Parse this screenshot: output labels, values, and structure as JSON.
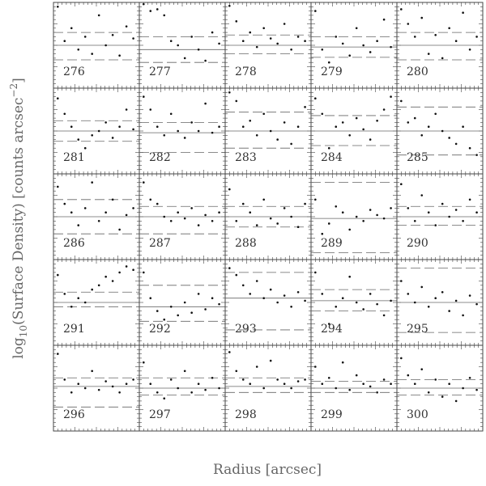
{
  "chart_data": {
    "type": "scatter",
    "ylabel": {
      "pre": "log",
      "sub": "10",
      "mid": "(Surface Density) [counts arcsec",
      "sup": "−2",
      "post": "]"
    },
    "xlabel": "Radius [arcsec]",
    "xlim": [
      0,
      1
    ],
    "ylim": [
      0,
      1
    ],
    "x": [
      0.05,
      0.13,
      0.21,
      0.29,
      0.37,
      0.45,
      0.53,
      0.61,
      0.69,
      0.77,
      0.85,
      0.93
    ],
    "panels": [
      {
        "label": "276",
        "lines": [
          0.5,
          0.65,
          0.33
        ],
        "values": [
          0.95,
          0.55,
          0.7,
          0.45,
          0.6,
          0.4,
          0.85,
          0.5,
          0.62,
          0.38,
          0.72,
          0.58
        ]
      },
      {
        "label": "277",
        "lines": [
          0.45,
          0.6,
          0.3
        ],
        "values": [
          0.98,
          0.9,
          0.92,
          0.85,
          0.55,
          0.5,
          0.35,
          0.6,
          0.45,
          0.32,
          0.65,
          0.52
        ]
      },
      {
        "label": "278",
        "lines": [
          0.5,
          0.62,
          0.4
        ],
        "values": [
          0.96,
          0.78,
          0.55,
          0.65,
          0.48,
          0.7,
          0.58,
          0.52,
          0.75,
          0.45,
          0.6,
          0.55
        ]
      },
      {
        "label": "279",
        "lines": [
          0.48,
          0.6,
          0.36
        ],
        "values": [
          0.9,
          0.45,
          0.3,
          0.6,
          0.52,
          0.38,
          0.7,
          0.5,
          0.42,
          0.55,
          0.8,
          0.48
        ]
      },
      {
        "label": "280",
        "lines": [
          0.5,
          0.65,
          0.33
        ],
        "values": [
          0.92,
          0.75,
          0.6,
          0.82,
          0.4,
          0.62,
          0.35,
          0.7,
          0.55,
          0.88,
          0.45,
          0.6
        ]
      },
      {
        "label": "281",
        "lines": [
          0.5,
          0.62,
          0.38
        ],
        "values": [
          0.88,
          0.7,
          0.55,
          0.4,
          0.3,
          0.45,
          0.5,
          0.6,
          0.42,
          0.55,
          0.75,
          0.52
        ]
      },
      {
        "label": "282",
        "lines": [
          0.48,
          0.6,
          0.25
        ],
        "values": [
          0.9,
          0.75,
          0.55,
          0.45,
          0.7,
          0.5,
          0.42,
          0.6,
          0.5,
          0.82,
          0.48,
          0.55
        ]
      },
      {
        "label": "283",
        "lines": [
          0.5,
          0.72,
          0.3
        ],
        "values": [
          0.95,
          0.85,
          0.55,
          0.62,
          0.45,
          0.7,
          0.5,
          0.4,
          0.6,
          0.35,
          0.55,
          0.78
        ]
      },
      {
        "label": "284",
        "lines": [
          0.5,
          0.68,
          0.33
        ],
        "values": [
          0.88,
          0.7,
          0.3,
          0.55,
          0.6,
          0.45,
          0.65,
          0.52,
          0.4,
          0.62,
          0.75,
          0.9
        ]
      },
      {
        "label": "285",
        "lines": [
          0.5,
          0.78,
          0.22
        ],
        "values": [
          0.85,
          0.6,
          0.65,
          0.45,
          0.55,
          0.7,
          0.5,
          0.42,
          0.35,
          0.55,
          0.3,
          0.22
        ]
      },
      {
        "label": "286",
        "lines": [
          0.5,
          0.7,
          0.3
        ],
        "values": [
          0.85,
          0.65,
          0.55,
          0.4,
          0.6,
          0.9,
          0.45,
          0.55,
          0.7,
          0.35,
          0.52,
          0.6
        ]
      },
      {
        "label": "287",
        "lines": [
          0.5,
          0.62,
          0.3
        ],
        "values": [
          0.9,
          0.7,
          0.65,
          0.5,
          0.45,
          0.55,
          0.48,
          0.6,
          0.4,
          0.52,
          0.45,
          0.55
        ]
      },
      {
        "label": "288",
        "lines": [
          0.5,
          0.62,
          0.38
        ],
        "values": [
          0.82,
          0.45,
          0.65,
          0.55,
          0.4,
          0.7,
          0.48,
          0.42,
          0.6,
          0.5,
          0.38,
          0.65
        ]
      },
      {
        "label": "289",
        "lines": [
          0.48,
          0.9,
          0.08
        ],
        "values": [
          0.7,
          0.3,
          0.42,
          0.62,
          0.55,
          0.35,
          0.5,
          0.45,
          0.58,
          0.52,
          0.48,
          0.6
        ]
      },
      {
        "label": "290",
        "lines": [
          0.5,
          0.62,
          0.4
        ],
        "values": [
          0.88,
          0.6,
          0.45,
          0.75,
          0.55,
          0.4,
          0.65,
          0.5,
          0.58,
          0.45,
          0.7,
          0.55
        ]
      },
      {
        "label": "291",
        "lines": [
          0.5,
          0.62,
          0.45
        ],
        "values": [
          0.82,
          0.6,
          0.45,
          0.55,
          0.5,
          0.65,
          0.7,
          0.8,
          0.75,
          0.85,
          0.92,
          0.88
        ]
      },
      {
        "label": "292",
        "lines": [
          0.45,
          0.7,
          0.28
        ],
        "values": [
          0.85,
          0.55,
          0.4,
          0.3,
          0.45,
          0.35,
          0.5,
          0.38,
          0.6,
          0.42,
          0.55,
          0.48
        ]
      },
      {
        "label": "293",
        "lines": [
          0.55,
          0.85,
          0.18
        ],
        "values": [
          0.9,
          0.82,
          0.7,
          0.6,
          0.75,
          0.55,
          0.65,
          0.5,
          0.58,
          0.45,
          0.62,
          0.52
        ]
      },
      {
        "label": "294",
        "lines": [
          0.52,
          0.65,
          0.4
        ],
        "values": [
          0.85,
          0.6,
          0.25,
          0.45,
          0.55,
          0.8,
          0.5,
          0.42,
          0.6,
          0.48,
          0.35,
          0.52
        ]
      },
      {
        "label": "295",
        "lines": [
          0.5,
          0.9,
          0.15
        ],
        "values": [
          0.75,
          0.6,
          0.5,
          0.68,
          0.45,
          0.55,
          0.62,
          0.4,
          0.52,
          0.35,
          0.58,
          0.48
        ]
      },
      {
        "label": "296",
        "lines": [
          0.52,
          0.62,
          0.28
        ],
        "values": [
          0.9,
          0.6,
          0.45,
          0.55,
          0.5,
          0.7,
          0.48,
          0.58,
          0.52,
          0.45,
          0.55,
          0.6
        ]
      },
      {
        "label": "297",
        "lines": [
          0.5,
          0.62,
          0.42
        ],
        "values": [
          0.8,
          0.55,
          0.45,
          0.38,
          0.6,
          0.5,
          0.7,
          0.45,
          0.55,
          0.48,
          0.62,
          0.5
        ]
      },
      {
        "label": "298",
        "lines": [
          0.52,
          0.62,
          0.45
        ],
        "values": [
          0.92,
          0.7,
          0.6,
          0.55,
          0.75,
          0.5,
          0.82,
          0.6,
          0.55,
          0.5,
          0.58,
          0.6
        ]
      },
      {
        "label": "299",
        "lines": [
          0.5,
          0.58,
          0.45
        ],
        "values": [
          0.75,
          0.55,
          0.62,
          0.5,
          0.8,
          0.48,
          0.65,
          0.55,
          0.52,
          0.45,
          0.6,
          0.55
        ]
      },
      {
        "label": "300",
        "lines": [
          0.5,
          0.6,
          0.42
        ],
        "values": [
          0.85,
          0.65,
          0.55,
          0.72,
          0.45,
          0.6,
          0.4,
          0.55,
          0.35,
          0.5,
          0.62,
          0.48
        ]
      }
    ]
  }
}
